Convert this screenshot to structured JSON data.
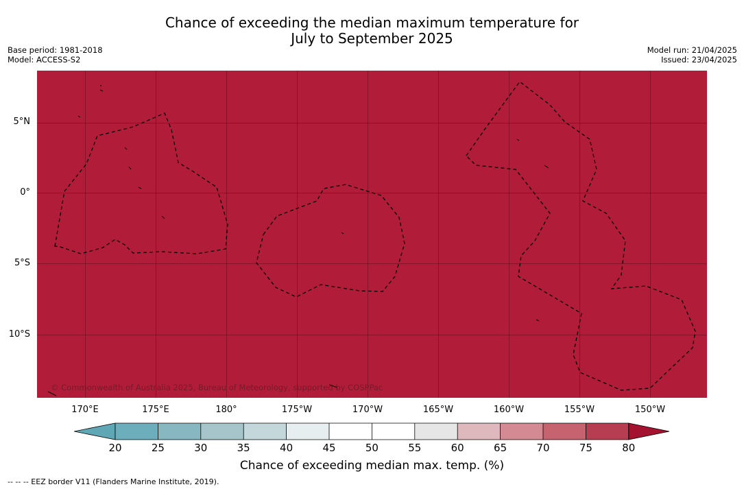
{
  "header": {
    "title_line1": "Chance of exceeding the median maximum temperature for",
    "title_line2": "July to September 2025",
    "base_period": "Base period: 1981-2018",
    "model": "Model: ACCESS-S2",
    "model_run": "Model run: 21/04/2025",
    "issued": "Issued: 23/04/2025"
  },
  "map": {
    "fill_color": "#b11d38",
    "fill_category": "80",
    "copyright": "© Commonwealth of Australia 2025, Bureau of Meteorology, supported by COSPPac",
    "lat_labels": [
      "5°N",
      "0°",
      "5°S",
      "10°S"
    ],
    "lon_labels": [
      "170°E",
      "175°E",
      "180°",
      "175°W",
      "170°W",
      "165°W",
      "160°W",
      "155°W",
      "150°W"
    ]
  },
  "colorbar": {
    "title": "Chance of exceeding median max. temp. (%)",
    "tick_labels": [
      "20",
      "25",
      "30",
      "35",
      "40",
      "45",
      "50",
      "55",
      "60",
      "65",
      "70",
      "75",
      "80"
    ],
    "colors": [
      "#5fa7b5",
      "#6caebc",
      "#87b7c1",
      "#a6c5ca",
      "#c4d7da",
      "#e7eef0",
      "#ffffff",
      "#ffffff",
      "#e6e6e6",
      "#deb8bd",
      "#d48a93",
      "#c7626f",
      "#b73d50",
      "#a3122e"
    ]
  },
  "footer": {
    "legend_note": "-- -- -- EEZ border V11 (Flanders Marine Institute, 2019)."
  }
}
